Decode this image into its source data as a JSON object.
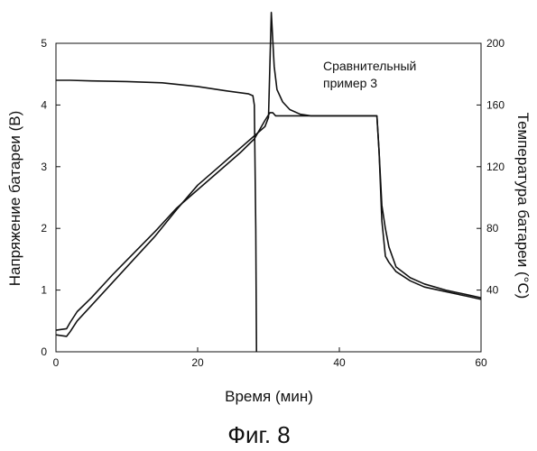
{
  "chart_data": {
    "type": "line",
    "title": "",
    "caption": "Фиг. 8",
    "xlabel": "Время (мин)",
    "ylabel_left": "Напряжение батареи (В)",
    "ylabel_right": "Температура батареи (°С)",
    "xlim": [
      0,
      60
    ],
    "ylim_left": [
      0,
      5
    ],
    "ylim_right": [
      0,
      200
    ],
    "xticks": [
      0,
      20,
      40,
      60
    ],
    "yticks_left": [
      0,
      1,
      2,
      3,
      4,
      5
    ],
    "yticks_right": [
      40,
      80,
      120,
      160,
      200
    ],
    "annotation": [
      "Сравнительный",
      "пример 3"
    ],
    "grid": false,
    "legend": "none",
    "series": [
      {
        "axis": "left",
        "x": [
          0,
          2,
          5,
          10,
          15,
          20,
          24,
          27.2,
          27.8,
          28.0,
          28.2,
          28.3
        ],
        "y": [
          4.4,
          4.4,
          4.39,
          4.38,
          4.36,
          4.3,
          4.23,
          4.18,
          4.15,
          4.0,
          2.0,
          0.0
        ]
      },
      {
        "axis": "right",
        "x": [
          0,
          1.5,
          2,
          3,
          5,
          8,
          11,
          14,
          17,
          20,
          23,
          26,
          28,
          29.5,
          30,
          30.4,
          30.8,
          31.2,
          32,
          33,
          34.5,
          36,
          38,
          40,
          42,
          44,
          45.3,
          45.6,
          46,
          46.5,
          47,
          48,
          50,
          52,
          55,
          58,
          60
        ],
        "y": [
          11,
          10,
          13,
          20,
          30,
          45,
          60,
          75,
          92,
          108,
          120,
          132,
          140,
          146,
          152,
          220,
          185,
          170,
          162,
          157,
          154,
          153,
          153,
          153,
          153,
          153,
          153,
          130,
          95,
          80,
          68,
          55,
          48,
          44,
          40,
          37,
          35
        ]
      },
      {
        "axis": "right",
        "x": [
          0,
          1.5,
          2,
          3,
          5,
          8,
          11,
          14,
          17,
          20,
          23,
          26,
          28,
          29.5,
          30.2,
          30.6,
          31,
          32,
          34,
          36,
          38,
          40,
          42,
          44,
          45.3,
          45.6,
          46,
          46.5,
          47,
          48,
          50,
          52,
          55,
          58,
          60
        ],
        "y": [
          14,
          15,
          19,
          26,
          35,
          50,
          64,
          78,
          93,
          105,
          117,
          129,
          138,
          150,
          155,
          155,
          153,
          153,
          153,
          153,
          153,
          153,
          153,
          153,
          153,
          130,
          85,
          62,
          58,
          52,
          46,
          42,
          39,
          36,
          34
        ]
      }
    ]
  }
}
